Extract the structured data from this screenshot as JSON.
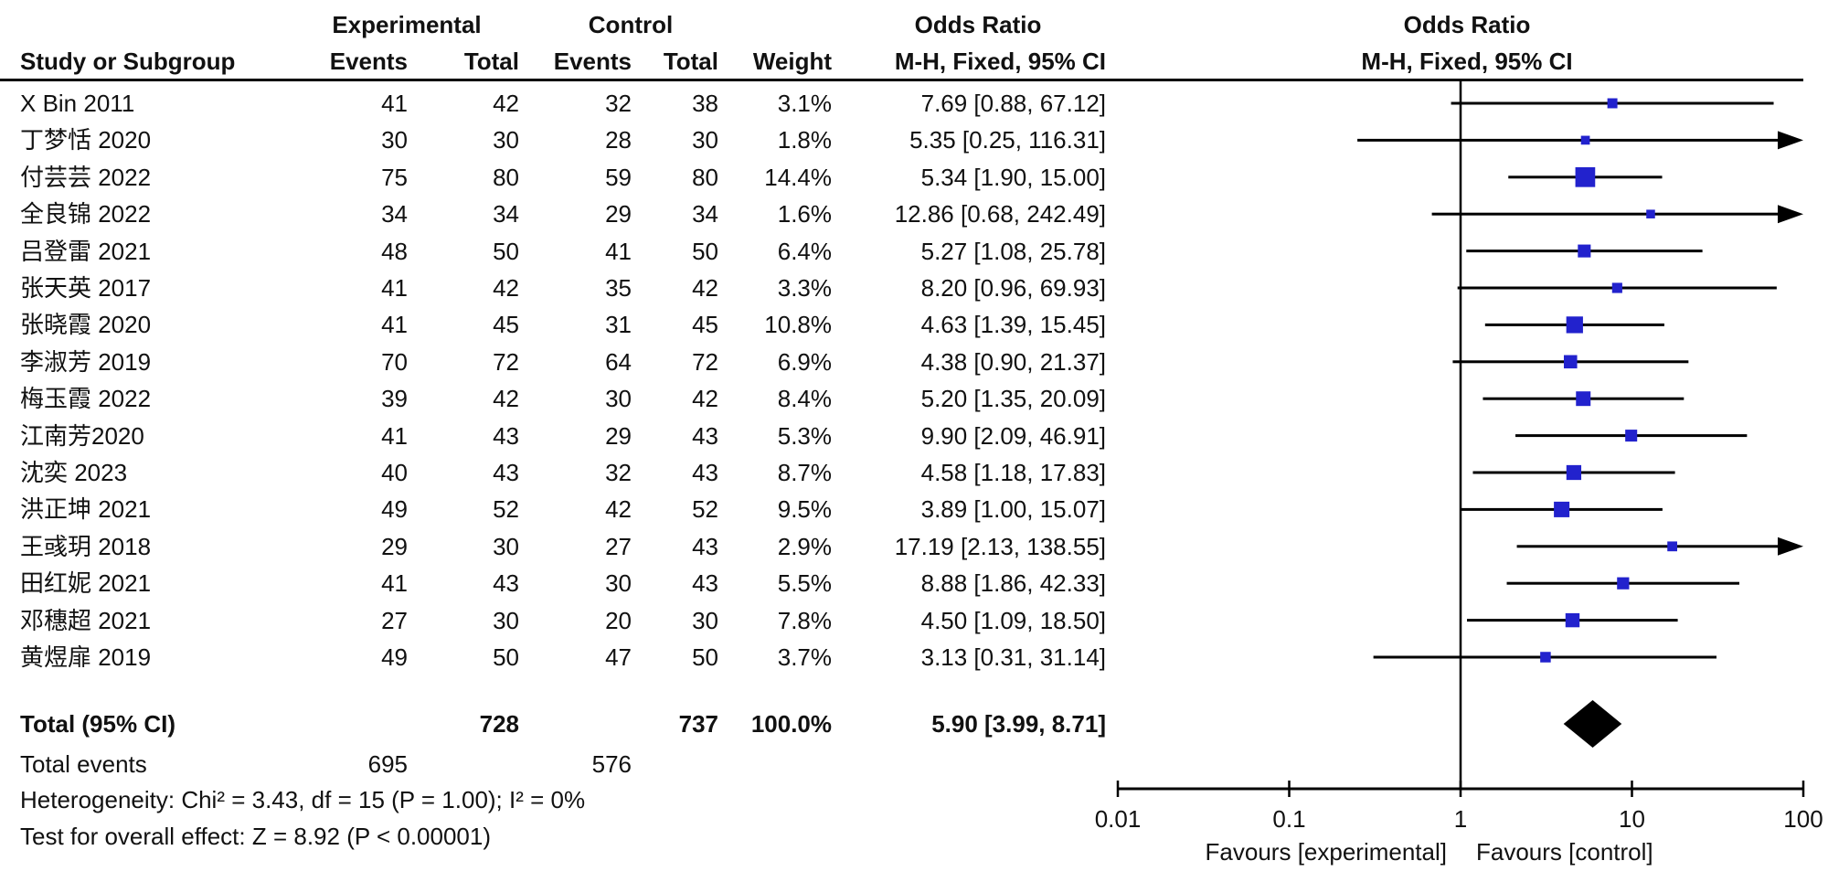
{
  "header": {
    "study_col": "Study or Subgroup",
    "group_experimental": "Experimental",
    "group_control": "Control",
    "odds_ratio_table": "Odds Ratio",
    "odds_ratio_plot": "Odds Ratio",
    "events_exp": "Events",
    "total_exp": "Total",
    "events_ctl": "Events",
    "total_ctl": "Total",
    "weight": "Weight",
    "mh_table": "M-H, Fixed, 95% CI",
    "mh_plot": "M-H, Fixed, 95% CI"
  },
  "footer": {
    "total_label": "Total (95% CI)",
    "total_exp": "728",
    "total_ctl": "737",
    "total_weight": "100.0%",
    "total_or_text": "5.90 [3.99, 8.71]",
    "total_events_label": "Total events",
    "total_events_exp": "695",
    "total_events_ctl": "576",
    "heterogeneity": "Heterogeneity: Chi² = 3.43, df = 15 (P = 1.00); I² = 0%",
    "overall_effect": "Test for overall effect: Z = 8.92 (P < 0.00001)"
  },
  "axis": {
    "tick_labels": [
      "0.01",
      "0.1",
      "1",
      "10",
      "100"
    ],
    "tick_values": [
      0.01,
      0.1,
      1,
      10,
      100
    ],
    "favours_left": "Favours [experimental]",
    "favours_right": "Favours [control]"
  },
  "colors": {
    "square": "#2222CD",
    "diamond": "#000000",
    "line": "#000000",
    "text": "#111111"
  },
  "chart_data": {
    "type": "forest",
    "effect_measure": "Odds Ratio, M-H, Fixed, 95% CI",
    "scale": "log10",
    "xlim": [
      0.01,
      100
    ],
    "studies": [
      {
        "name": "X Bin 2011",
        "events_exp": 41,
        "total_exp": 42,
        "events_ctl": 32,
        "total_ctl": 38,
        "weight_text": "3.1%",
        "weight": 3.1,
        "or_text": "7.69 [0.88, 67.12]",
        "or": 7.69,
        "ci_lo": 0.88,
        "ci_hi": 67.12
      },
      {
        "name": "丁梦恬 2020",
        "events_exp": 30,
        "total_exp": 30,
        "events_ctl": 28,
        "total_ctl": 30,
        "weight_text": "1.8%",
        "weight": 1.8,
        "or_text": "5.35 [0.25, 116.31]",
        "or": 5.35,
        "ci_lo": 0.25,
        "ci_hi": 116.31
      },
      {
        "name": "付芸芸 2022",
        "events_exp": 75,
        "total_exp": 80,
        "events_ctl": 59,
        "total_ctl": 80,
        "weight_text": "14.4%",
        "weight": 14.4,
        "or_text": "5.34 [1.90, 15.00]",
        "or": 5.34,
        "ci_lo": 1.9,
        "ci_hi": 15.0
      },
      {
        "name": "全良锦 2022",
        "events_exp": 34,
        "total_exp": 34,
        "events_ctl": 29,
        "total_ctl": 34,
        "weight_text": "1.6%",
        "weight": 1.6,
        "or_text": "12.86 [0.68, 242.49]",
        "or": 12.86,
        "ci_lo": 0.68,
        "ci_hi": 242.49
      },
      {
        "name": "吕登雷 2021",
        "events_exp": 48,
        "total_exp": 50,
        "events_ctl": 41,
        "total_ctl": 50,
        "weight_text": "6.4%",
        "weight": 6.4,
        "or_text": "5.27 [1.08, 25.78]",
        "or": 5.27,
        "ci_lo": 1.08,
        "ci_hi": 25.78
      },
      {
        "name": "张天英 2017",
        "events_exp": 41,
        "total_exp": 42,
        "events_ctl": 35,
        "total_ctl": 42,
        "weight_text": "3.3%",
        "weight": 3.3,
        "or_text": "8.20 [0.96, 69.93]",
        "or": 8.2,
        "ci_lo": 0.96,
        "ci_hi": 69.93
      },
      {
        "name": "张晓霞 2020",
        "events_exp": 41,
        "total_exp": 45,
        "events_ctl": 31,
        "total_ctl": 45,
        "weight_text": "10.8%",
        "weight": 10.8,
        "or_text": "4.63 [1.39, 15.45]",
        "or": 4.63,
        "ci_lo": 1.39,
        "ci_hi": 15.45
      },
      {
        "name": "李淑芳 2019",
        "events_exp": 70,
        "total_exp": 72,
        "events_ctl": 64,
        "total_ctl": 72,
        "weight_text": "6.9%",
        "weight": 6.9,
        "or_text": "4.38 [0.90, 21.37]",
        "or": 4.38,
        "ci_lo": 0.9,
        "ci_hi": 21.37
      },
      {
        "name": "梅玉霞 2022",
        "events_exp": 39,
        "total_exp": 42,
        "events_ctl": 30,
        "total_ctl": 42,
        "weight_text": "8.4%",
        "weight": 8.4,
        "or_text": "5.20 [1.35, 20.09]",
        "or": 5.2,
        "ci_lo": 1.35,
        "ci_hi": 20.09
      },
      {
        "name": "江南芳2020",
        "events_exp": 41,
        "total_exp": 43,
        "events_ctl": 29,
        "total_ctl": 43,
        "weight_text": "5.3%",
        "weight": 5.3,
        "or_text": "9.90 [2.09, 46.91]",
        "or": 9.9,
        "ci_lo": 2.09,
        "ci_hi": 46.91
      },
      {
        "name": "沈奕 2023",
        "events_exp": 40,
        "total_exp": 43,
        "events_ctl": 32,
        "total_ctl": 43,
        "weight_text": "8.7%",
        "weight": 8.7,
        "or_text": "4.58 [1.18, 17.83]",
        "or": 4.58,
        "ci_lo": 1.18,
        "ci_hi": 17.83
      },
      {
        "name": "洪正坤 2021",
        "events_exp": 49,
        "total_exp": 52,
        "events_ctl": 42,
        "total_ctl": 52,
        "weight_text": "9.5%",
        "weight": 9.5,
        "or_text": "3.89 [1.00, 15.07]",
        "or": 3.89,
        "ci_lo": 1.0,
        "ci_hi": 15.07
      },
      {
        "name": "王彧玥 2018",
        "events_exp": 29,
        "total_exp": 30,
        "events_ctl": 27,
        "total_ctl": 43,
        "weight_text": "2.9%",
        "weight": 2.9,
        "or_text": "17.19 [2.13, 138.55]",
        "or": 17.19,
        "ci_lo": 2.13,
        "ci_hi": 138.55
      },
      {
        "name": "田红妮 2021",
        "events_exp": 41,
        "total_exp": 43,
        "events_ctl": 30,
        "total_ctl": 43,
        "weight_text": "5.5%",
        "weight": 5.5,
        "or_text": "8.88 [1.86, 42.33]",
        "or": 8.88,
        "ci_lo": 1.86,
        "ci_hi": 42.33
      },
      {
        "name": "邓穗超 2021",
        "events_exp": 27,
        "total_exp": 30,
        "events_ctl": 20,
        "total_ctl": 30,
        "weight_text": "7.8%",
        "weight": 7.8,
        "or_text": "4.50 [1.09, 18.50]",
        "or": 4.5,
        "ci_lo": 1.09,
        "ci_hi": 18.5
      },
      {
        "name": "黄煜扉 2019",
        "events_exp": 49,
        "total_exp": 50,
        "events_ctl": 47,
        "total_ctl": 50,
        "weight_text": "3.7%",
        "weight": 3.7,
        "or_text": "3.13 [0.31, 31.14]",
        "or": 3.13,
        "ci_lo": 0.31,
        "ci_hi": 31.14
      }
    ],
    "total": {
      "or": 5.9,
      "ci_lo": 3.99,
      "ci_hi": 8.71,
      "weight": 100.0
    },
    "heterogeneity": {
      "chi2": 3.43,
      "df": 15,
      "p": 1.0,
      "i2_pct": 0
    },
    "overall_effect": {
      "z": 8.92,
      "p": "< 0.00001"
    }
  }
}
